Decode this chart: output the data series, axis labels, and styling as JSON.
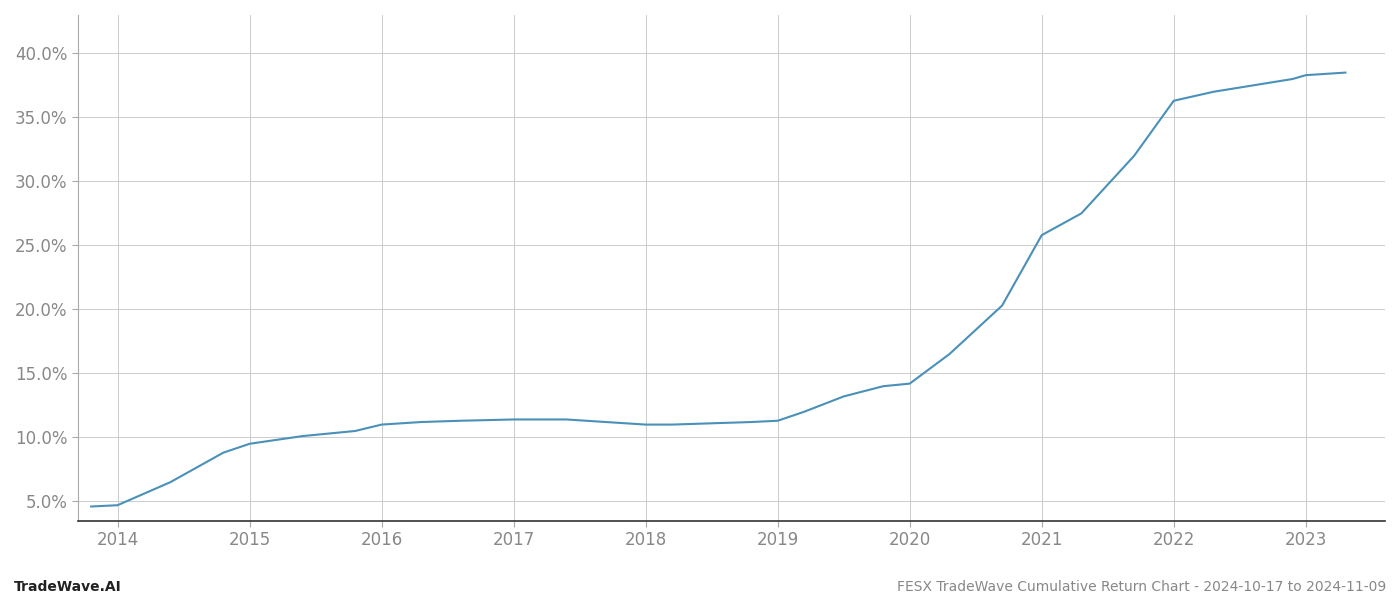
{
  "x_values": [
    2013.8,
    2014.0,
    2014.4,
    2014.8,
    2015.0,
    2015.4,
    2015.8,
    2016.0,
    2016.3,
    2016.6,
    2017.0,
    2017.4,
    2017.7,
    2018.0,
    2018.2,
    2018.5,
    2018.8,
    2019.0,
    2019.2,
    2019.5,
    2019.8,
    2020.0,
    2020.3,
    2020.7,
    2021.0,
    2021.3,
    2021.7,
    2022.0,
    2022.3,
    2022.6,
    2022.9,
    2023.0,
    2023.3
  ],
  "y_values": [
    4.6,
    4.7,
    6.5,
    8.8,
    9.5,
    10.1,
    10.5,
    11.0,
    11.2,
    11.3,
    11.4,
    11.4,
    11.2,
    11.0,
    11.0,
    11.1,
    11.2,
    11.3,
    12.0,
    13.2,
    14.0,
    14.2,
    16.5,
    20.3,
    25.8,
    27.5,
    32.0,
    36.3,
    37.0,
    37.5,
    38.0,
    38.3,
    38.5
  ],
  "line_color": "#4a90b8",
  "background_color": "#ffffff",
  "grid_color": "#cccccc",
  "title": "FESX TradeWave Cumulative Return Chart - 2024-10-17 to 2024-11-09",
  "footer_left": "TradeWave.AI",
  "ytick_labels": [
    "5.0%",
    "10.0%",
    "15.0%",
    "20.0%",
    "25.0%",
    "30.0%",
    "35.0%",
    "40.0%"
  ],
  "ytick_values": [
    5.0,
    10.0,
    15.0,
    20.0,
    25.0,
    30.0,
    35.0,
    40.0
  ],
  "xtick_labels": [
    "2014",
    "2015",
    "2016",
    "2017",
    "2018",
    "2019",
    "2020",
    "2021",
    "2022",
    "2023"
  ],
  "xtick_values": [
    2014,
    2015,
    2016,
    2017,
    2018,
    2019,
    2020,
    2021,
    2022,
    2023
  ],
  "xlim": [
    2013.7,
    2023.6
  ],
  "ylim": [
    3.5,
    43.0
  ],
  "line_width": 1.5,
  "font_color": "#888888",
  "title_fontsize": 10,
  "footer_fontsize": 10,
  "tick_fontsize": 12
}
